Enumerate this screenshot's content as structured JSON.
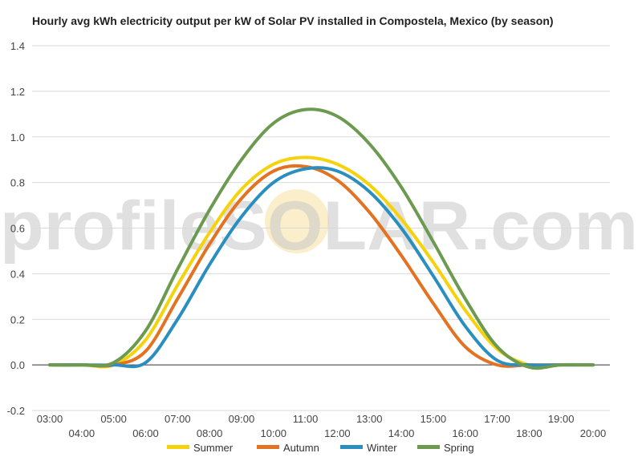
{
  "watermark": "profileSOLAR.com",
  "chart_data": {
    "type": "line",
    "title": "Hourly avg kWh electricity output per kW of Solar PV installed in Compostela, Mexico (by season)",
    "xlabel": "",
    "ylabel": "",
    "ylim": [
      -0.2,
      1.4
    ],
    "yticks": [
      "-0.2",
      "0.0",
      "0.2",
      "0.4",
      "0.6",
      "0.8",
      "1.0",
      "1.2",
      "1.4"
    ],
    "x": [
      "03:00",
      "04:00",
      "05:00",
      "06:00",
      "07:00",
      "08:00",
      "09:00",
      "10:00",
      "11:00",
      "12:00",
      "13:00",
      "14:00",
      "15:00",
      "16:00",
      "17:00",
      "18:00",
      "19:00",
      "20:00"
    ],
    "grid": true,
    "legend_position": "bottom",
    "series": [
      {
        "name": "Summer",
        "color": "#f5d20a",
        "values": [
          0,
          0,
          0,
          0.11,
          0.35,
          0.58,
          0.77,
          0.88,
          0.91,
          0.88,
          0.79,
          0.64,
          0.45,
          0.24,
          0.07,
          0,
          0,
          0
        ]
      },
      {
        "name": "Autumn",
        "color": "#e37222",
        "values": [
          0,
          0,
          0,
          0.06,
          0.29,
          0.53,
          0.73,
          0.85,
          0.87,
          0.81,
          0.67,
          0.48,
          0.27,
          0.08,
          0,
          0,
          0,
          0
        ]
      },
      {
        "name": "Winter",
        "color": "#2a8fbf",
        "values": [
          0,
          0,
          0,
          0.01,
          0.2,
          0.44,
          0.65,
          0.8,
          0.86,
          0.85,
          0.76,
          0.6,
          0.39,
          0.17,
          0.02,
          0,
          0,
          0
        ]
      },
      {
        "name": "Spring",
        "color": "#6c9a50",
        "values": [
          0,
          0,
          0.01,
          0.15,
          0.42,
          0.68,
          0.9,
          1.06,
          1.12,
          1.09,
          0.97,
          0.78,
          0.54,
          0.29,
          0.08,
          -0.01,
          0,
          0
        ]
      }
    ]
  }
}
